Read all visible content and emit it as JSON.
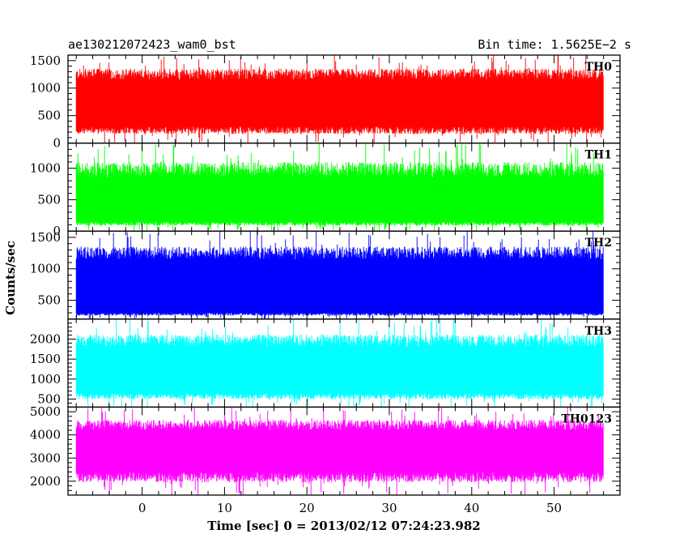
{
  "chart_data": {
    "type": "line",
    "title_left": "ae130212072423_wam0_bst",
    "title_right": "Bin time: 1.5625E−2 s",
    "xlabel": "Time [sec] 0 = 2013/02/12 07:24:23.982",
    "ylabel": "Counts/sec",
    "xlim": [
      -9,
      58
    ],
    "x_data_range": [
      -8,
      56
    ],
    "x_ticks": [
      0,
      10,
      20,
      30,
      40,
      50
    ],
    "grid": false,
    "panels": [
      {
        "name": "TH0",
        "color": "#ff0000",
        "ylim": [
          0,
          1600
        ],
        "y_ticks": [
          0,
          500,
          1000,
          1500
        ],
        "upper_level": 1150,
        "lower_level": 300
      },
      {
        "name": "TH1",
        "color": "#00ff00",
        "ylim": [
          0,
          1400
        ],
        "y_ticks": [
          0,
          500,
          1000
        ],
        "upper_level": 850,
        "lower_level": 150
      },
      {
        "name": "TH2",
        "color": "#0000ff",
        "ylim": [
          200,
          1600
        ],
        "y_ticks": [
          500,
          1000,
          1500
        ],
        "upper_level": 1150,
        "lower_level": 300
      },
      {
        "name": "TH3",
        "color": "#00ffff",
        "ylim": [
          300,
          2500
        ],
        "y_ticks": [
          500,
          1000,
          1500,
          2000
        ],
        "upper_level": 1800,
        "lower_level": 650
      },
      {
        "name": "TH0123",
        "color": "#ff00ff",
        "ylim": [
          1400,
          5200
        ],
        "y_ticks": [
          2000,
          3000,
          4000,
          5000
        ],
        "upper_level": 4200,
        "lower_level": 2400
      }
    ]
  }
}
